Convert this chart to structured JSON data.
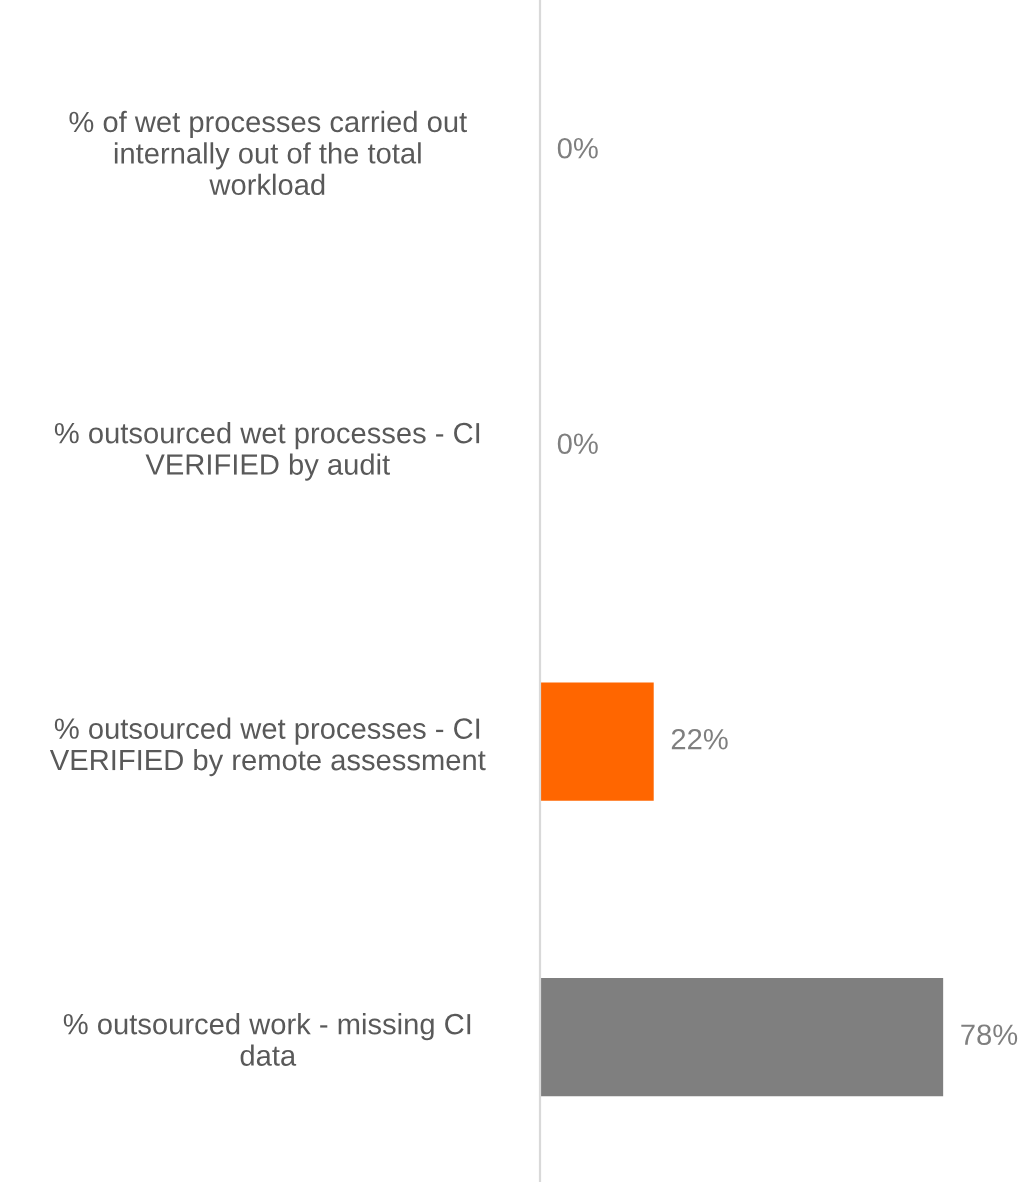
{
  "chart_data": {
    "type": "bar",
    "orientation": "horizontal",
    "categories": [
      "% of wet processes carried out\ninternally out of the total\nworkload",
      "% outsourced wet processes - CI\nVERIFIED by audit",
      "% outsourced wet processes - CI\nVERIFIED by remote assessment",
      "% outsourced work - missing CI\ndata"
    ],
    "values": [
      0,
      0,
      22,
      78
    ],
    "colors": [
      "#ff6600",
      "#ff6600",
      "#ff6600",
      "#7f7f7f"
    ],
    "value_labels": [
      "0%",
      "0%",
      "22%",
      "78%"
    ],
    "tick_labels": "y"
  }
}
